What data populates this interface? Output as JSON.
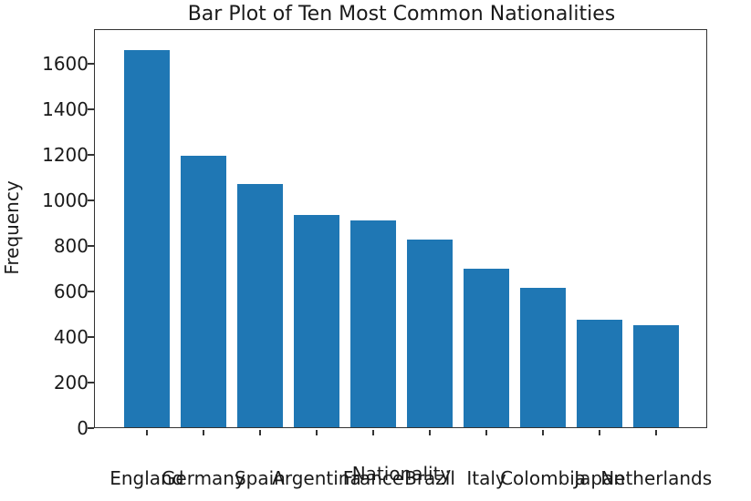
{
  "chart_data": {
    "type": "bar",
    "title": "Bar Plot of Ten Most Common Nationalities",
    "xlabel": "Nationality",
    "ylabel": "Frequency",
    "categories": [
      "England",
      "Germany",
      "Spain",
      "Argentina",
      "France",
      "Brazil",
      "Italy",
      "Colombia",
      "Japan",
      "Netherlands"
    ],
    "values": [
      1662,
      1198,
      1072,
      937,
      914,
      827,
      702,
      618,
      478,
      453
    ],
    "yticks": [
      0,
      200,
      400,
      600,
      800,
      1000,
      1200,
      1400,
      1600
    ],
    "ylim": [
      0,
      1744
    ],
    "xlim": [
      -0.9,
      9.9
    ],
    "bar_rel_width": 0.8,
    "bar_color": "#1f77b4",
    "grid": false,
    "legend": "none",
    "colors": {
      "background": "#ffffff",
      "spine": "#333333",
      "text": "#1a1a1a"
    }
  }
}
